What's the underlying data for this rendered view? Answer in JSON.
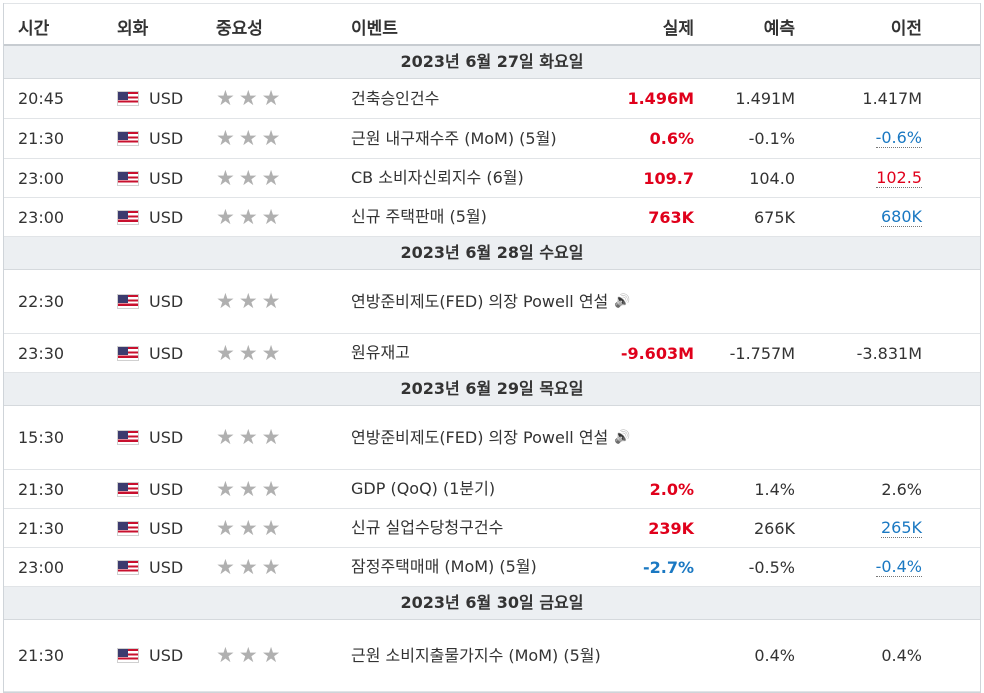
{
  "header": {
    "time": "시간",
    "currency": "외화",
    "importance": "중요성",
    "event": "이벤트",
    "actual": "실제",
    "forecast": "예측",
    "previous": "이전"
  },
  "colors": {
    "positive": "#e0001b",
    "negative": "#1a78c2",
    "stars": "#b0b0b0",
    "day_bg": "#eceff2"
  },
  "icons": {
    "flag": "us-flag-icon",
    "star": "star-icon",
    "speaker": "speaker-icon"
  },
  "days": [
    {
      "label": "2023년 6월 27일 화요일",
      "events": [
        {
          "time": "20:45",
          "currency": "USD",
          "stars": 3,
          "event": "건축승인건수",
          "actual": "1.496M",
          "actual_color": "red",
          "forecast": "1.491M",
          "previous": "1.417M",
          "previous_color": "",
          "previous_revised": false,
          "speech": false
        },
        {
          "time": "21:30",
          "currency": "USD",
          "stars": 3,
          "event": "근원 내구재수주 (MoM) (5월)",
          "actual": "0.6%",
          "actual_color": "red",
          "forecast": "-0.1%",
          "previous": "-0.6%",
          "previous_color": "blue",
          "previous_revised": true,
          "speech": false
        },
        {
          "time": "23:00",
          "currency": "USD",
          "stars": 3,
          "event": "CB 소비자신뢰지수 (6월)",
          "actual": "109.7",
          "actual_color": "red",
          "forecast": "104.0",
          "previous": "102.5",
          "previous_color": "red",
          "previous_revised": true,
          "speech": false
        },
        {
          "time": "23:00",
          "currency": "USD",
          "stars": 3,
          "event": "신규 주택판매 (5월)",
          "actual": "763K",
          "actual_color": "red",
          "forecast": "675K",
          "previous": "680K",
          "previous_color": "blue",
          "previous_revised": true,
          "speech": false
        }
      ]
    },
    {
      "label": "2023년 6월 28일 수요일",
      "events": [
        {
          "time": "22:30",
          "currency": "USD",
          "stars": 3,
          "event": "연방준비제도(FED) 의장 Powell 연설",
          "actual": "",
          "actual_color": "",
          "forecast": "",
          "previous": "",
          "previous_color": "",
          "previous_revised": false,
          "speech": true
        },
        {
          "time": "23:30",
          "currency": "USD",
          "stars": 3,
          "event": "원유재고",
          "actual": "-9.603M",
          "actual_color": "red",
          "forecast": "-1.757M",
          "previous": "-3.831M",
          "previous_color": "",
          "previous_revised": false,
          "speech": false
        }
      ]
    },
    {
      "label": "2023년 6월 29일 목요일",
      "events": [
        {
          "time": "15:30",
          "currency": "USD",
          "stars": 3,
          "event": "연방준비제도(FED) 의장 Powell 연설",
          "actual": "",
          "actual_color": "",
          "forecast": "",
          "previous": "",
          "previous_color": "",
          "previous_revised": false,
          "speech": true
        },
        {
          "time": "21:30",
          "currency": "USD",
          "stars": 3,
          "event": "GDP (QoQ) (1분기)",
          "actual": "2.0%",
          "actual_color": "red",
          "forecast": "1.4%",
          "previous": "2.6%",
          "previous_color": "",
          "previous_revised": false,
          "speech": false
        },
        {
          "time": "21:30",
          "currency": "USD",
          "stars": 3,
          "event": "신규 실업수당청구건수",
          "actual": "239K",
          "actual_color": "red",
          "forecast": "266K",
          "previous": "265K",
          "previous_color": "blue",
          "previous_revised": true,
          "speech": false
        },
        {
          "time": "23:00",
          "currency": "USD",
          "stars": 3,
          "event": "잠정주택매매 (MoM) (5월)",
          "actual": "-2.7%",
          "actual_color": "blue",
          "forecast": "-0.5%",
          "previous": "-0.4%",
          "previous_color": "blue",
          "previous_revised": true,
          "speech": false
        }
      ]
    },
    {
      "label": "2023년 6월 30일 금요일",
      "events": [
        {
          "time": "21:30",
          "currency": "USD",
          "stars": 3,
          "event": "근원 소비지출물가지수 (MoM) (5월)",
          "actual": "",
          "actual_color": "",
          "forecast": "0.4%",
          "previous": "0.4%",
          "previous_color": "",
          "previous_revised": false,
          "speech": false
        }
      ]
    }
  ]
}
